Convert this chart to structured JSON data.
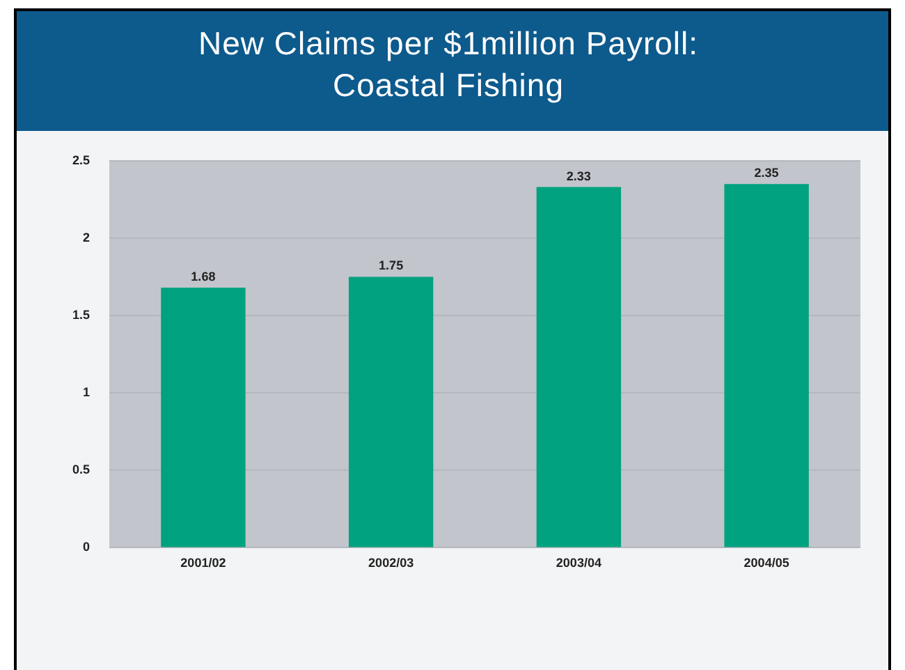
{
  "chart_data": {
    "type": "bar",
    "title": "New Claims per $1million Payroll: Coastal Fishing",
    "categories": [
      "2001/02",
      "2002/03",
      "2003/04",
      "2004/05"
    ],
    "values": [
      1.68,
      1.75,
      2.33,
      2.35
    ],
    "color": "#00a27f",
    "ylim": [
      0,
      2.5
    ],
    "yticks": [
      0,
      0.5,
      1,
      1.5,
      2,
      2.5
    ],
    "grid": "y",
    "data_labels": true
  }
}
